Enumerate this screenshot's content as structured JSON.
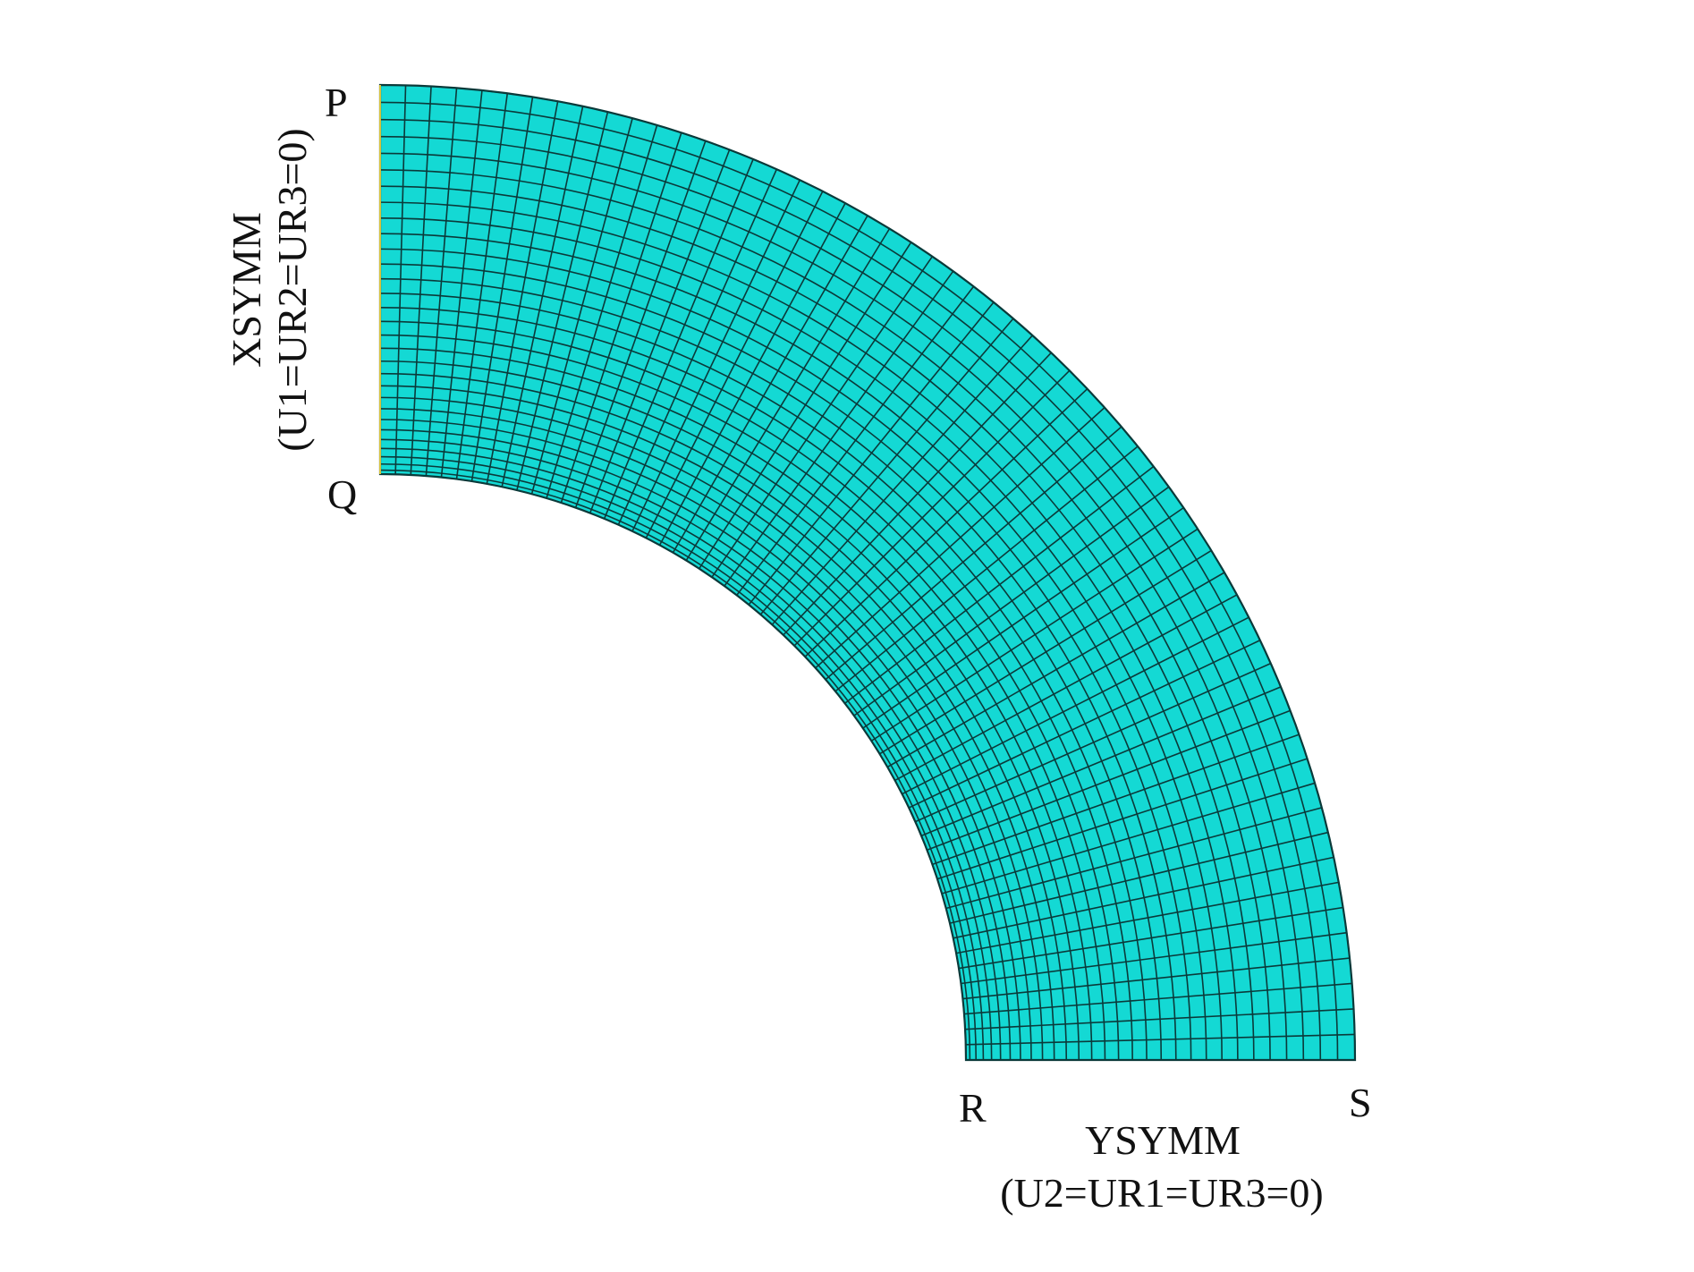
{
  "colors": {
    "mesh_fill": "#14d9d4",
    "mesh_line": "#0b3a3a",
    "fixed_edge": "#d8c23a",
    "text": "#111111"
  },
  "mesh": {
    "radial_divisions": 30,
    "circumferential_divisions": 60
  },
  "corners": {
    "p": "P",
    "q": "Q",
    "r": "R",
    "s": "S"
  },
  "boundary_conditions": {
    "left": {
      "name": "XSYMM",
      "dofs": "(U1=UR2=UR3=0)"
    },
    "bottom": {
      "name": "YSYMM",
      "dofs": "(U2=UR1=UR3=0)"
    }
  }
}
